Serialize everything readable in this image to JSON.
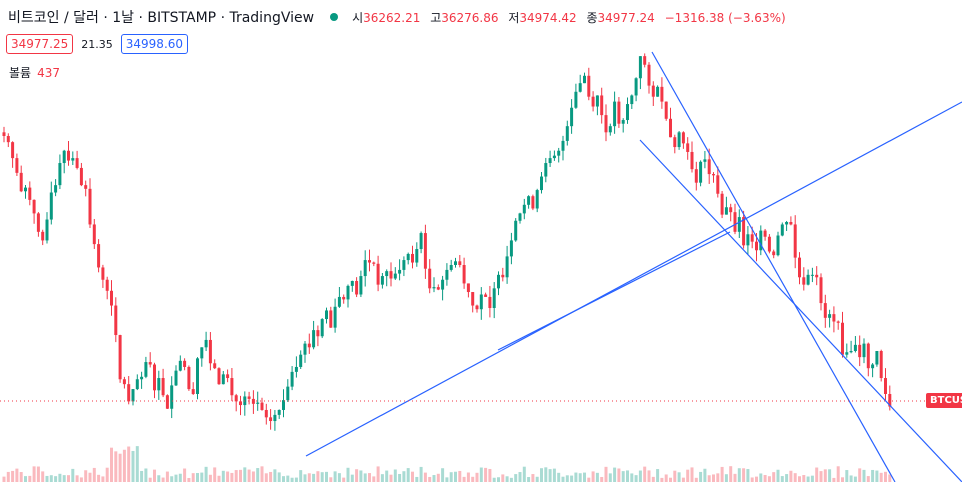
{
  "header": {
    "symbol": "비트코인 / 달러 · 1날 · BITSTAMP · TradingView",
    "open_label": "시",
    "open": "36262.21",
    "high_label": "고",
    "high": "36276.86",
    "low_label": "저",
    "low": "34974.42",
    "close_label": "종",
    "close": "34977.24",
    "change": "−1316.38 (−3.63%)",
    "status_color": "#089981"
  },
  "quote": {
    "bid": "34977.25",
    "spread": "21.35",
    "ask": "34998.60"
  },
  "volume": {
    "label": "볼륨",
    "value": "437"
  },
  "price_tag": {
    "label": "BTCUSD"
  },
  "colors": {
    "up": "#089981",
    "down": "#f23645",
    "trendline": "#2962ff"
  },
  "chart_data": {
    "type": "candlestick",
    "series": [
      {
        "name": "BTCUSD",
        "ohlc_close_path": [
          57000,
          56500,
          55200,
          54000,
          52500,
          52800,
          51800,
          50700,
          49200,
          48500,
          50200,
          52400,
          53000,
          54800,
          55800,
          55000,
          55200,
          54400,
          53000,
          52700,
          49800,
          48200,
          46300,
          45300,
          44400,
          43200,
          40800,
          37200,
          36800,
          35400,
          36400,
          37200,
          37400,
          38600,
          38400,
          36300,
          37300,
          35900,
          34800,
          36700,
          37900,
          38700,
          38200,
          36400,
          36000,
          38900,
          39800,
          40400,
          38500,
          38100,
          36800,
          37600,
          37300,
          35900,
          35400,
          35100,
          35800,
          35600,
          35200,
          35300,
          34700,
          34100,
          33800,
          34300,
          34700,
          35500,
          36600,
          37800,
          38200,
          39200,
          40100,
          39800,
          41200,
          40700,
          42100,
          42800,
          41400,
          43100,
          43900,
          43700,
          44800,
          45200,
          44100,
          45600,
          46900,
          46700,
          46600,
          44900,
          45600,
          46000,
          45400,
          45800,
          46100,
          46900,
          47400,
          46700,
          47800,
          49100,
          46200,
          44600,
          44700,
          44500,
          45300,
          46100,
          46500,
          46800,
          46500,
          45000,
          44300,
          43200,
          42900,
          44100,
          43900,
          43000,
          44600,
          45700,
          45500,
          47200,
          48500,
          50100,
          50700,
          51400,
          52100,
          51100,
          52600,
          53700,
          54800,
          55200,
          55400,
          55800,
          56600,
          57800,
          59300,
          60600,
          61300,
          61900,
          60200,
          59400,
          60300,
          58700,
          57300,
          57800,
          59800,
          58000,
          58300,
          59600,
          60300,
          61700,
          63500,
          62800,
          61100,
          60200,
          61000,
          59800,
          58400,
          56900,
          56100,
          57300,
          56400,
          55700,
          54300,
          53200,
          54900,
          55100,
          53900,
          53800,
          52300,
          50600,
          51200,
          50800,
          49200,
          50400,
          48100,
          49000,
          48400,
          47700,
          49300,
          48800,
          47600,
          47300,
          48900,
          49800,
          50000,
          49800,
          47100,
          45500,
          44900,
          45700,
          45700,
          45500,
          43400,
          42200,
          42500,
          41900,
          41800,
          39200,
          39400,
          39500,
          40000,
          39000,
          40100,
          38100,
          38400,
          39500,
          37300,
          36000,
          34977
        ]
      }
    ],
    "x_unit": "1 day per candle",
    "trendlines": 4
  }
}
